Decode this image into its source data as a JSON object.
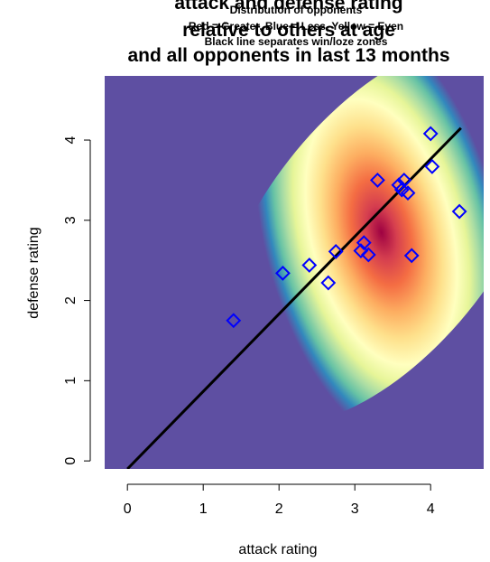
{
  "chart_data": {
    "type": "heatmap",
    "title_lines": [
      "attack and defense rating",
      "relative to others at age",
      "and all opponents in last 13 months"
    ],
    "subtitle_lines": [
      "Distribution of opponents",
      "Red = Greater, Blue = Less, Yellow = Even",
      "Black line separates win/loze zones"
    ],
    "xlabel": "attack rating",
    "ylabel": "defense rating",
    "xlim": [
      -0.3,
      4.7
    ],
    "ylim": [
      -0.1,
      4.8
    ],
    "x_ticks": [
      0,
      1,
      2,
      3,
      4
    ],
    "y_ticks": [
      0,
      1,
      2,
      3,
      4
    ],
    "density_peak": {
      "x": 3.35,
      "y": 2.85
    },
    "density_colors": [
      "#5e4fa2",
      "#3288bd",
      "#66c2a5",
      "#abdda4",
      "#e6f598",
      "#ffffbf",
      "#fee08b",
      "#fdae61",
      "#f46d43",
      "#d53e4f",
      "#9e0142"
    ],
    "separator_line": {
      "x1": 0.0,
      "y1": -0.1,
      "x2": 4.4,
      "y2": 4.15,
      "color": "#000000"
    },
    "points": {
      "marker": "diamond",
      "color": "#0000ff",
      "x": [
        1.4,
        2.05,
        2.4,
        2.65,
        2.75,
        3.08,
        3.12,
        3.18,
        3.3,
        3.58,
        3.62,
        3.65,
        3.7,
        3.75,
        4.0,
        4.02,
        4.38
      ],
      "y": [
        1.75,
        2.34,
        2.44,
        2.22,
        2.61,
        2.62,
        2.72,
        2.57,
        3.5,
        3.44,
        3.38,
        3.5,
        3.34,
        2.56,
        4.08,
        3.67,
        3.11
      ]
    }
  }
}
